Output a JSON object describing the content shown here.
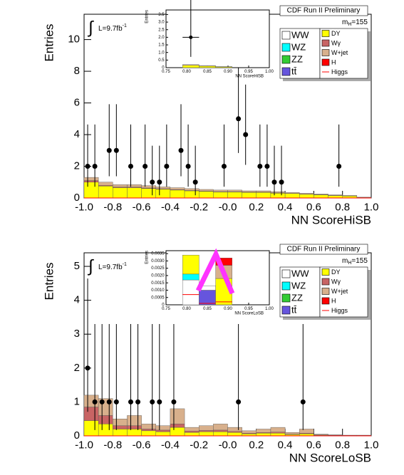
{
  "chart_data": [
    {
      "type": "histogram",
      "title": "CDF Run II Preliminary",
      "mass_label": {
        "text": "m",
        "sub": "H",
        "rest": "=155"
      },
      "lumi_label": {
        "symbol": "∫",
        "text": "L=9.7fb",
        "sup": "-1"
      },
      "x_label": "NN ScoreHiSB",
      "y_label": "Entries",
      "xlim": [
        -1,
        1
      ],
      "xticks": [
        {
          "value": -1,
          "label": "-1.0"
        },
        -0.8,
        -0.6,
        -0.4,
        -0.2,
        {
          "value": 0,
          "label": "-0.0"
        },
        0.2,
        0.4,
        0.6,
        0.8,
        {
          "value": 1,
          "label": "1.0"
        }
      ],
      "ylim": [
        0,
        11.6
      ],
      "yticks": [
        0,
        2,
        4,
        6,
        8,
        10
      ],
      "bins": [
        -1,
        -0.9,
        -0.8,
        -0.7,
        -0.6,
        -0.5,
        -0.4,
        -0.3,
        -0.2,
        -0.1,
        0,
        0.1,
        0.2,
        0.3,
        0.4,
        0.5,
        0.6,
        0.7,
        0.8,
        0.9,
        1
      ],
      "series": [
        {
          "name": "DY",
          "color": "#ffff00",
          "legend_column": 2,
          "values": [
            1.0,
            0.75,
            0.65,
            0.65,
            0.6,
            0.55,
            0.5,
            0.45,
            0.42,
            0.38,
            0.38,
            0.35,
            0.35,
            0.3,
            0.28,
            0.23,
            0.2,
            0.15,
            0.12,
            0.04
          ]
        },
        {
          "name": "Wγ",
          "color": "#c86464",
          "legend_column": 2,
          "values": [
            0.1,
            0.05,
            0.04,
            0.04,
            0.03,
            0.03,
            0.03,
            0.02,
            0.02,
            0.02,
            0.02,
            0.02,
            0.02,
            0.02,
            0.01,
            0.01,
            0.01,
            0.01,
            0.01,
            0
          ]
        },
        {
          "name": "W+jet",
          "color": "#d8b08c",
          "legend_column": 2,
          "values": [
            0.2,
            0.2,
            0.15,
            0.15,
            0.15,
            0.12,
            0.12,
            0.12,
            0.1,
            0.1,
            0.1,
            0.08,
            0.08,
            0.08,
            0.06,
            0.06,
            0.04,
            0.04,
            0.03,
            0.01
          ]
        },
        {
          "name": "WW",
          "color": "#ffffff",
          "legend_column": 1,
          "values": [
            0,
            0,
            0,
            0,
            0,
            0,
            0,
            0,
            0,
            0,
            0,
            0,
            0,
            0,
            0,
            0,
            0,
            0,
            0,
            0
          ]
        },
        {
          "name": "WZ",
          "color": "#00ffff",
          "legend_column": 1,
          "values": [
            0,
            0,
            0,
            0,
            0,
            0,
            0,
            0,
            0,
            0,
            0,
            0,
            0,
            0,
            0,
            0,
            0,
            0,
            0,
            0
          ]
        },
        {
          "name": "ZZ",
          "color": "#33cc33",
          "legend_column": 1,
          "values": [
            0,
            0,
            0,
            0,
            0,
            0,
            0,
            0,
            0,
            0,
            0,
            0,
            0,
            0,
            0,
            0,
            0,
            0,
            0,
            0
          ]
        },
        {
          "name": "tt̄",
          "color": "#6655dd",
          "legend_column": 1,
          "values": [
            0,
            0,
            0,
            0,
            0,
            0,
            0,
            0,
            0,
            0,
            0,
            0,
            0,
            0,
            0,
            0,
            0,
            0,
            0,
            0
          ]
        },
        {
          "name": "H",
          "color": "#ff0000",
          "legend_column": 2,
          "values": [
            0,
            0,
            0,
            0,
            0,
            0,
            0,
            0,
            0,
            0,
            0,
            0,
            0,
            0,
            0,
            0,
            0,
            0,
            0,
            0
          ]
        },
        {
          "name": "Higgs",
          "color": "#ff0000",
          "style": "line",
          "legend_column": 2,
          "values": [
            0,
            0,
            0,
            0,
            0,
            0,
            0,
            0,
            0,
            0,
            0,
            0,
            0,
            0,
            0,
            0,
            0,
            0,
            0,
            0
          ]
        }
      ],
      "data": {
        "x": [
          -0.975,
          -0.925,
          -0.825,
          -0.775,
          -0.675,
          -0.575,
          -0.525,
          -0.475,
          -0.425,
          -0.325,
          -0.275,
          -0.225,
          -0.025,
          0.075,
          0.125,
          0.225,
          0.275,
          0.325,
          0.375,
          0.775
        ],
        "values": [
          2,
          2,
          3,
          3,
          2,
          2,
          1,
          1,
          2,
          3,
          2,
          1,
          2,
          5,
          4,
          2,
          2,
          1,
          1,
          2
        ],
        "err_low": [
          1.29,
          1.29,
          1.63,
          1.63,
          1.29,
          1.29,
          0.83,
          0.83,
          1.29,
          1.63,
          1.29,
          0.83,
          1.29,
          2.16,
          1.91,
          1.29,
          1.29,
          0.83,
          0.83,
          1.29
        ],
        "err_high": [
          2.64,
          2.64,
          2.92,
          2.92,
          2.64,
          2.64,
          2.3,
          2.3,
          2.64,
          2.92,
          2.64,
          2.3,
          2.64,
          3.38,
          3.16,
          2.64,
          2.64,
          2.3,
          2.3,
          2.64
        ]
      },
      "inset": {
        "x_label": "NN ScoreHiSB",
        "y_label": "Entries",
        "xlim": [
          0.75,
          1
        ],
        "xticks": [
          0.75,
          {
            "value": 0.8,
            "label": "0.80"
          },
          0.85,
          {
            "value": 0.9,
            "label": "0.90"
          },
          0.95,
          {
            "value": 1,
            "label": "1.00"
          }
        ],
        "ylim": [
          0,
          3.8
        ],
        "yticks": [
          0,
          0.5,
          {
            "value": 1,
            "label": "1.0"
          },
          1.5,
          {
            "value": 2,
            "label": "2.0"
          },
          2.5,
          {
            "value": 3,
            "label": "3.0"
          },
          3.5
        ],
        "bins": [
          0.79,
          0.83,
          0.87,
          0.91
        ],
        "series": [
          {
            "color": "#ffff00",
            "values": [
              0.15,
              0.1,
              0.05
            ]
          },
          {
            "color": "#d8b08c",
            "values": [
              0.05,
              0.03,
              0.02
            ]
          }
        ],
        "data": {
          "x": [
            0.81
          ],
          "xerr": [
            0.02
          ],
          "values": [
            2
          ],
          "err_low": [
            1.29
          ],
          "err_high": [
            2.64
          ]
        }
      }
    },
    {
      "type": "histogram",
      "title": "CDF Run II Preliminary",
      "mass_label": {
        "text": "m",
        "sub": "H",
        "rest": "=155"
      },
      "lumi_label": {
        "symbol": "∫",
        "text": "L=9.7fb",
        "sup": "-1"
      },
      "x_label": "NN ScoreLoSB",
      "y_label": "Entries",
      "xlim": [
        -1,
        1
      ],
      "xticks": [
        {
          "value": -1,
          "label": "-1.0"
        },
        -0.8,
        -0.6,
        -0.4,
        -0.2,
        {
          "value": 0,
          "label": "-0.0"
        },
        0.2,
        0.4,
        0.6,
        0.8,
        {
          "value": 1,
          "label": "1.0"
        }
      ],
      "ylim": [
        0,
        5.4
      ],
      "yticks": [
        0,
        1,
        2,
        3,
        4,
        5
      ],
      "bins": [
        -1,
        -0.9,
        -0.8,
        -0.7,
        -0.6,
        -0.5,
        -0.4,
        -0.3,
        -0.2,
        -0.1,
        0,
        0.1,
        0.2,
        0.3,
        0.4,
        0.5,
        0.6,
        0.7,
        0.8,
        0.9,
        1
      ],
      "series": [
        {
          "name": "DY",
          "color": "#ffff00",
          "legend_column": 2,
          "values": [
            0.45,
            0.35,
            0.2,
            0.2,
            0.15,
            0.12,
            0.25,
            0.1,
            0.12,
            0.12,
            0.1,
            0.06,
            0.08,
            0.08,
            0.04,
            0.06,
            0.02,
            0.01,
            0.01,
            0.01
          ]
        },
        {
          "name": "Wγ",
          "color": "#c86464",
          "legend_column": 2,
          "values": [
            0.4,
            0.25,
            0.1,
            0.1,
            0.05,
            0.05,
            0.1,
            0.04,
            0.04,
            0.05,
            0.03,
            0.02,
            0.02,
            0.03,
            0.01,
            0.02,
            0.01,
            0.01,
            0.005,
            0.005
          ]
        },
        {
          "name": "W+jet",
          "color": "#d8b08c",
          "legend_column": 2,
          "values": [
            0.35,
            0.5,
            0.2,
            0.3,
            0.15,
            0.13,
            0.45,
            0.11,
            0.14,
            0.18,
            0.12,
            0.07,
            0.1,
            0.14,
            0.05,
            0.12,
            0.02,
            0.01,
            0.005,
            0.005
          ]
        },
        {
          "name": "WW",
          "color": "#ffffff",
          "legend_column": 1,
          "values": [
            0,
            0,
            0,
            0,
            0,
            0,
            0,
            0,
            0,
            0,
            0,
            0,
            0,
            0,
            0,
            0,
            0,
            0,
            0,
            0
          ]
        },
        {
          "name": "WZ",
          "color": "#00ffff",
          "legend_column": 1,
          "values": [
            0,
            0,
            0,
            0,
            0,
            0,
            0,
            0,
            0,
            0,
            0,
            0,
            0,
            0,
            0,
            0,
            0,
            0,
            0,
            0
          ]
        },
        {
          "name": "ZZ",
          "color": "#33cc33",
          "legend_column": 1,
          "values": [
            0,
            0,
            0,
            0,
            0,
            0,
            0,
            0,
            0,
            0,
            0,
            0,
            0,
            0,
            0,
            0,
            0,
            0,
            0,
            0
          ]
        },
        {
          "name": "tt̄",
          "color": "#6655dd",
          "legend_column": 1,
          "values": [
            0,
            0,
            0,
            0,
            0,
            0,
            0,
            0,
            0,
            0,
            0,
            0,
            0,
            0,
            0,
            0,
            0,
            0,
            0,
            0
          ]
        },
        {
          "name": "H",
          "color": "#ff0000",
          "legend_column": 2,
          "values": [
            0,
            0,
            0,
            0,
            0,
            0,
            0,
            0,
            0,
            0,
            0,
            0,
            0,
            0,
            0,
            0,
            0,
            0,
            0,
            0
          ]
        },
        {
          "name": "Higgs",
          "color": "#ff0000",
          "style": "line",
          "legend_column": 2,
          "values": [
            0,
            0,
            0,
            0,
            0,
            0,
            0,
            0,
            0,
            0,
            0,
            0,
            0,
            0,
            0,
            0,
            0,
            0,
            0,
            0
          ]
        }
      ],
      "data": {
        "x": [
          -0.975,
          -0.925,
          -0.875,
          -0.825,
          -0.775,
          -0.675,
          -0.625,
          -0.525,
          -0.475,
          -0.375,
          0.075,
          0.525
        ],
        "values": [
          2,
          1,
          1,
          1,
          1,
          1,
          1,
          1,
          1,
          1,
          1,
          1
        ],
        "err_low": [
          1.29,
          0.83,
          0.83,
          0.83,
          0.83,
          0.83,
          0.83,
          0.83,
          0.83,
          0.83,
          0.83,
          0.83
        ],
        "err_high": [
          2.64,
          2.3,
          2.3,
          2.3,
          2.3,
          2.3,
          2.3,
          2.3,
          2.3,
          2.3,
          2.3,
          2.3
        ]
      },
      "inset": {
        "x_label": "NN ScoreLoSB",
        "y_label": "Entries",
        "xlim": [
          0.75,
          1
        ],
        "xticks": [
          0.75,
          {
            "value": 0.8,
            "label": "0.80"
          },
          0.85,
          {
            "value": 0.9,
            "label": "0.90"
          },
          0.95,
          {
            "value": 1,
            "label": "1.00"
          }
        ],
        "ylim": [
          0,
          0.0037
        ],
        "yticks": [
          0,
          0.0005,
          {
            "value": 0.001,
            "label": "0.0010"
          },
          0.0015,
          {
            "value": 0.002,
            "label": "0.0020"
          },
          0.0025,
          {
            "value": 0.003,
            "label": "0.0030"
          },
          0.0035
        ],
        "bins": [
          0.79,
          0.83,
          0.87,
          0.91
        ],
        "series": [
          {
            "color": "#6655dd",
            "values": [
              0,
              0.001,
              0
            ]
          },
          {
            "color": "#ffffff",
            "values": [
              0.0017,
              0.0003,
              0
            ]
          },
          {
            "color": "#00ffff",
            "values": [
              0.0004,
              0,
              0
            ]
          },
          {
            "color": "#ffff00",
            "values": [
              0.0013,
              0,
              0.0018
            ]
          },
          {
            "color": "#d8b08c",
            "values": [
              0,
              0,
              0.0009
            ]
          },
          {
            "color": "#ff0000",
            "values": [
              0,
              0,
              0.0005
            ]
          }
        ],
        "line": {
          "color": "#ff0000",
          "values": [
            0.0007,
            0.0001,
            0.0002
          ]
        }
      }
    }
  ]
}
